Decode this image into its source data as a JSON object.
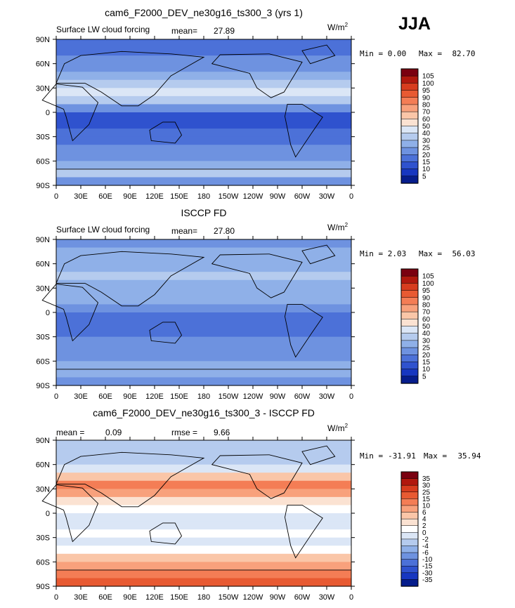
{
  "season": "JJA",
  "chart_data": [
    {
      "type": "heatmap",
      "title": "cam6_F2000_DEV_ne30g16_ts300_3 (yrs 1)",
      "left_label": "Surface LW cloud forcing",
      "mean_label": "mean=",
      "mean_value": "27.89",
      "units": "W/m",
      "units_exp": "2",
      "min_label": "Min =",
      "min_value": "0.00",
      "max_label": "Max =",
      "max_value": "82.70",
      "xticks": [
        "0",
        "30E",
        "60E",
        "90E",
        "120E",
        "150E",
        "180",
        "150W",
        "120W",
        "90W",
        "60W",
        "30W",
        "0"
      ],
      "yticks": [
        "90N",
        "60N",
        "30N",
        "0",
        "30S",
        "60S",
        "90S"
      ],
      "xrange": [
        0,
        360
      ],
      "yrange": [
        -90,
        90
      ],
      "colorbar": {
        "levels": [
          "105",
          "100",
          "95",
          "90",
          "80",
          "70",
          "60",
          "50",
          "40",
          "30",
          "25",
          "20",
          "15",
          "10",
          "5"
        ],
        "colors": [
          "#7a0010",
          "#b0180e",
          "#d73c1e",
          "#e85a32",
          "#f47d55",
          "#f8a17c",
          "#fac6a8",
          "#fbe2d2",
          "#dbe6f6",
          "#b5cbee",
          "#8fb0e8",
          "#6e92e0",
          "#4c71d8",
          "#2f52ce",
          "#1737c0",
          "#061d8c"
        ]
      },
      "zonal_profile": [
        20,
        24,
        28,
        32,
        36,
        44,
        52,
        44,
        28,
        18,
        16,
        20,
        26,
        30,
        32,
        36,
        40,
        30
      ]
    },
    {
      "type": "heatmap",
      "title": "ISCCP FD",
      "left_label": "Surface LW cloud forcing",
      "mean_label": "mean=",
      "mean_value": "27.80",
      "units": "W/m",
      "units_exp": "2",
      "min_label": "Min =",
      "min_value": "2.03",
      "max_label": "Max =",
      "max_value": "56.03",
      "xticks": [
        "0",
        "30E",
        "60E",
        "90E",
        "120E",
        "150E",
        "180",
        "150W",
        "120W",
        "90W",
        "60W",
        "30W",
        "0"
      ],
      "yticks": [
        "90N",
        "60N",
        "30N",
        "0",
        "30S",
        "60S",
        "90S"
      ],
      "xrange": [
        0,
        360
      ],
      "yrange": [
        -90,
        90
      ],
      "colorbar": {
        "levels": [
          "105",
          "100",
          "95",
          "90",
          "80",
          "70",
          "60",
          "50",
          "40",
          "30",
          "25",
          "20",
          "15",
          "10",
          "5"
        ],
        "colors": [
          "#7a0010",
          "#b0180e",
          "#d73c1e",
          "#e85a32",
          "#f47d55",
          "#f8a17c",
          "#fac6a8",
          "#fbe2d2",
          "#dbe6f6",
          "#b5cbee",
          "#8fb0e8",
          "#6e92e0",
          "#4c71d8",
          "#2f52ce",
          "#1737c0",
          "#061d8c"
        ]
      },
      "zonal_profile": [
        30,
        34,
        36,
        38,
        40,
        38,
        36,
        34,
        30,
        22,
        20,
        24,
        28,
        30,
        32,
        34,
        34,
        30
      ]
    },
    {
      "type": "heatmap",
      "title": "cam6_F2000_DEV_ne30g16_ts300_3 - ISCCP FD",
      "left_label": "mean =",
      "mean_label": "",
      "mean_value": "0.09",
      "rmse_label": "rmse =",
      "rmse_value": "9.66",
      "units": "W/m",
      "units_exp": "2",
      "min_label": "Min =",
      "min_value": "-31.91",
      "max_label": "Max =",
      "max_value": "35.94",
      "xticks": [
        "0",
        "30E",
        "60E",
        "90E",
        "120E",
        "150E",
        "180",
        "150W",
        "120W",
        "90W",
        "60W",
        "30W",
        "0"
      ],
      "yticks": [
        "90N",
        "60N",
        "30N",
        "0",
        "30S",
        "60S",
        "90S"
      ],
      "xrange": [
        0,
        360
      ],
      "yrange": [
        -90,
        90
      ],
      "colorbar": {
        "levels": [
          "35",
          "30",
          "25",
          "15",
          "10",
          "6",
          "4",
          "2",
          "0",
          "-2",
          "-4",
          "-6",
          "-10",
          "-15",
          "-30",
          "-35"
        ],
        "colors": [
          "#7a0010",
          "#b0180e",
          "#d73c1e",
          "#e85a32",
          "#f47d55",
          "#f8a17c",
          "#fac6a8",
          "#fbe2d2",
          "#ffffff",
          "#dbe6f6",
          "#b5cbee",
          "#8fb0e8",
          "#6e92e0",
          "#4c71d8",
          "#2f52ce",
          "#1737c0",
          "#061d8c"
        ]
      },
      "zonal_profile": [
        -10,
        -10,
        -8,
        -4,
        10,
        18,
        14,
        4,
        -2,
        -4,
        -4,
        -2,
        -4,
        2,
        8,
        12,
        18,
        20
      ]
    }
  ]
}
